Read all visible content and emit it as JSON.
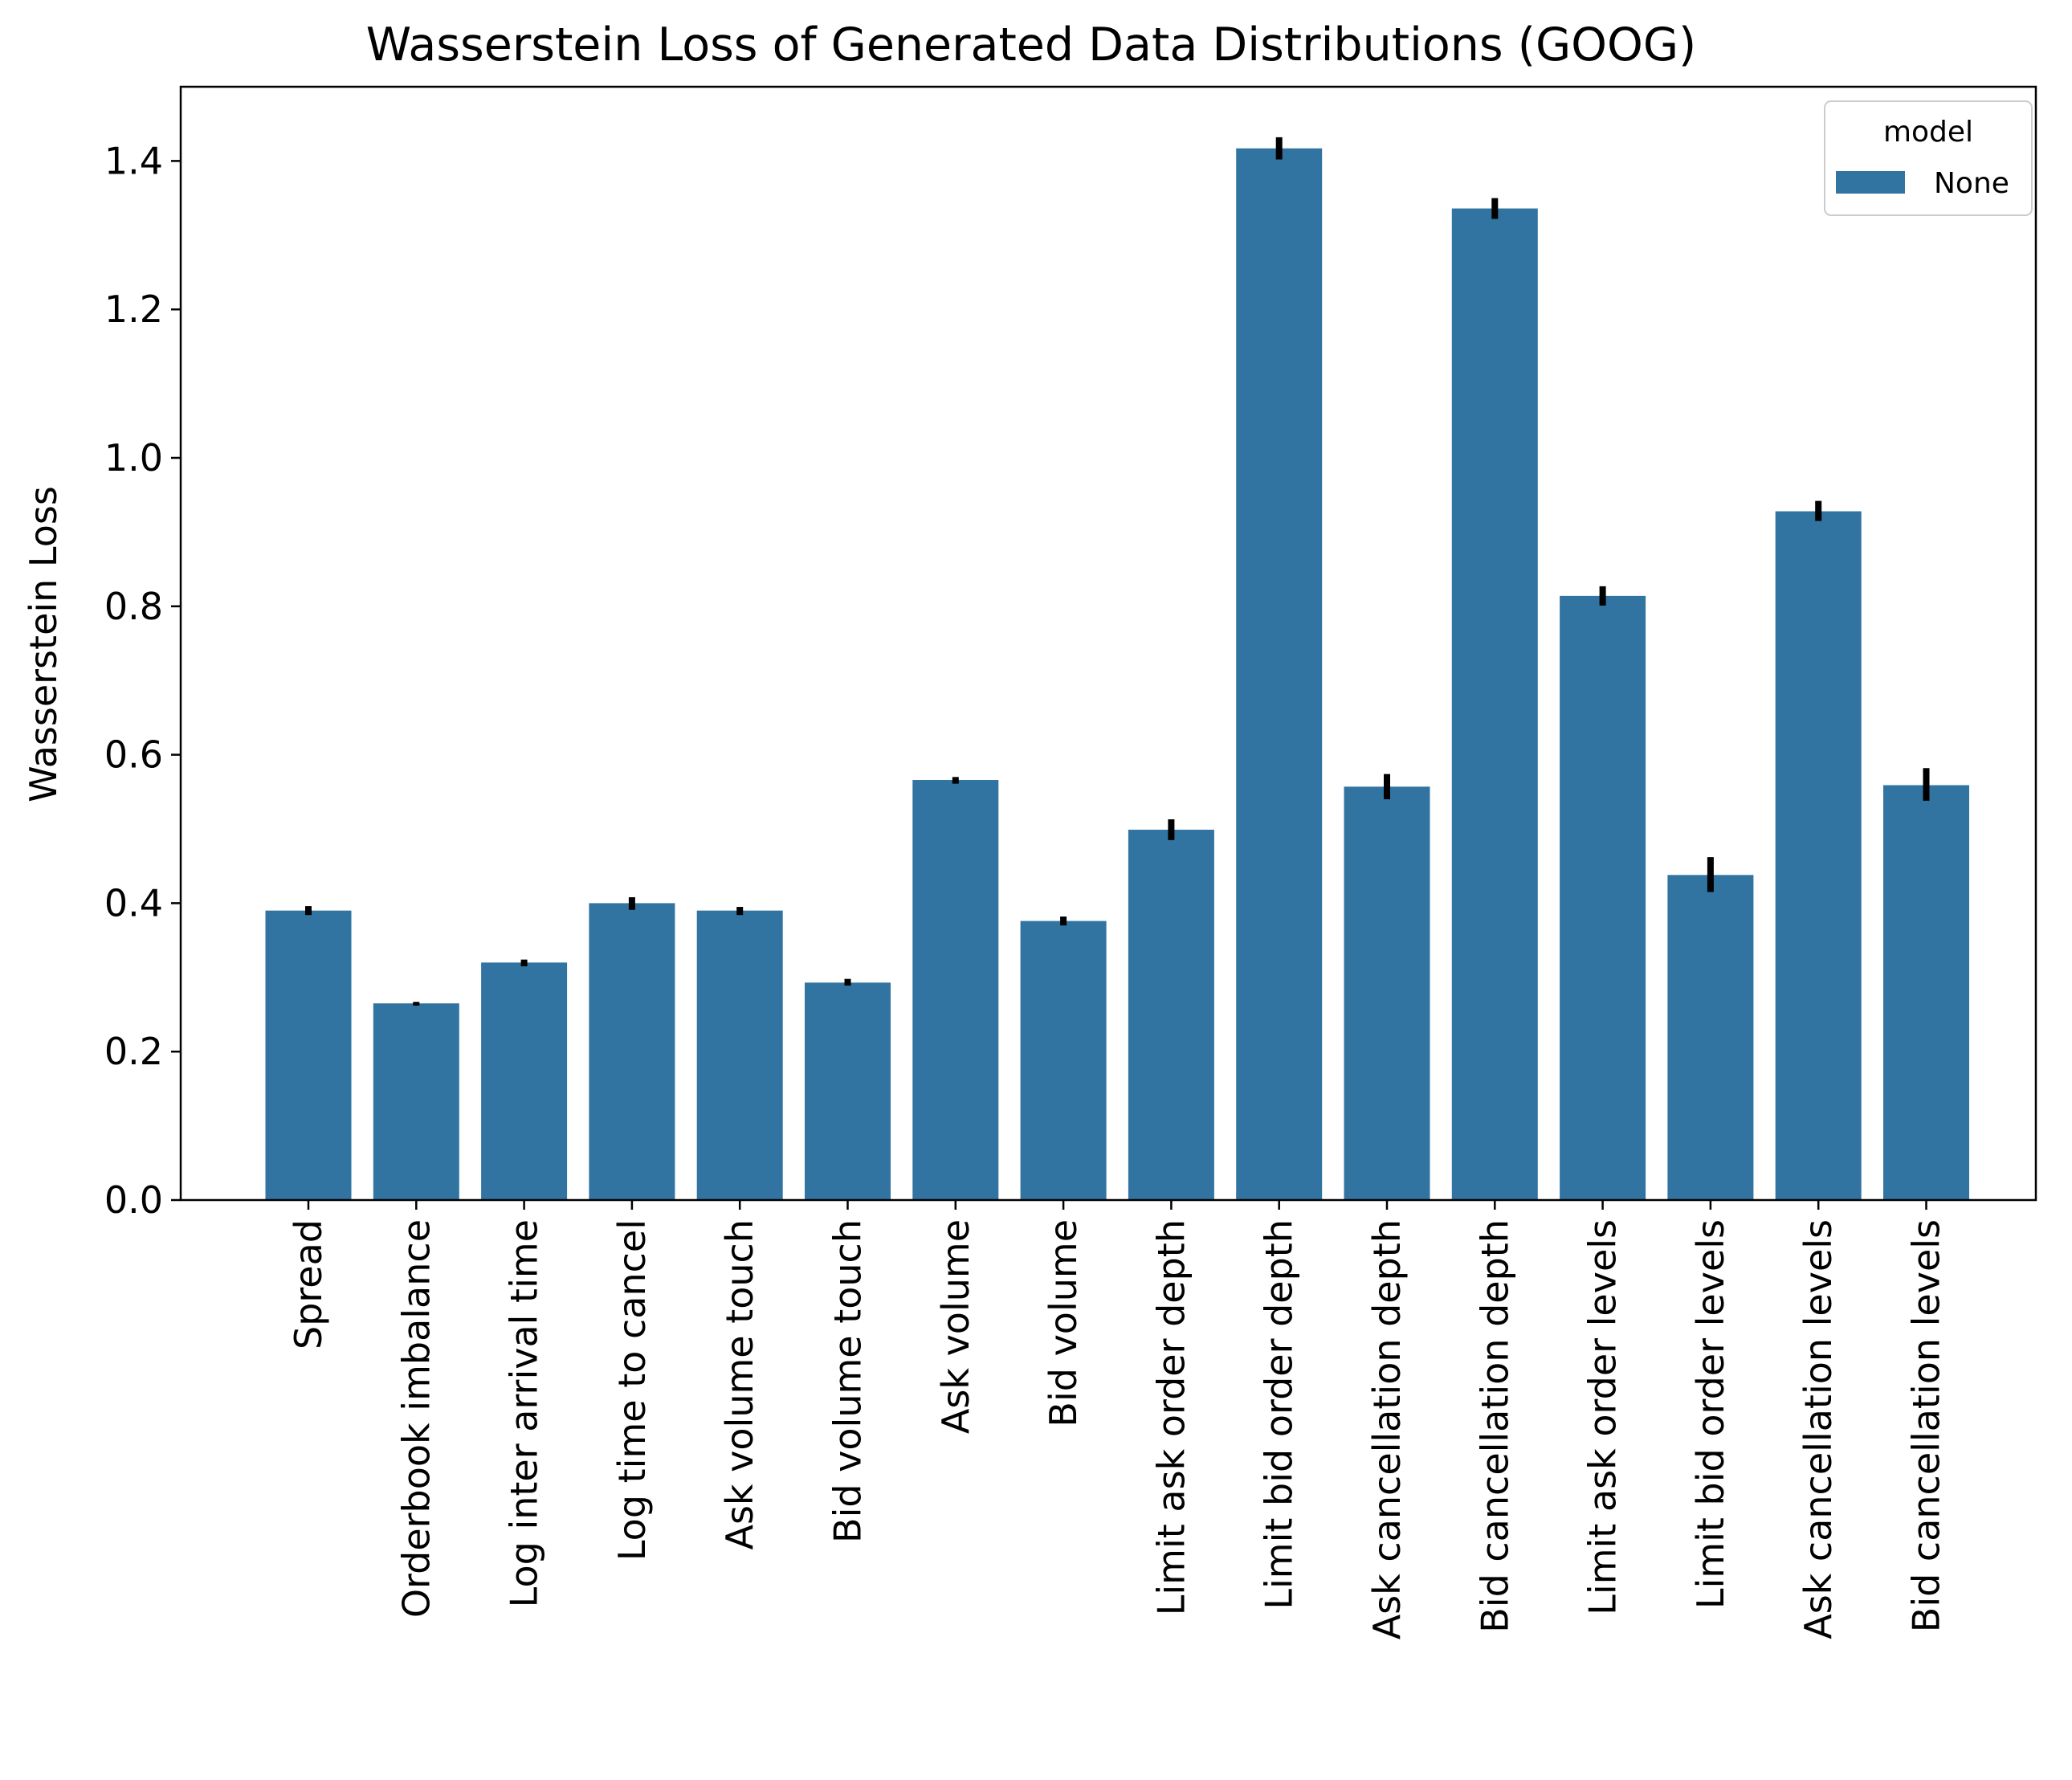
{
  "chart_data": {
    "type": "bar",
    "title": "Wasserstein Loss of Generated Data Distributions (GOOG)",
    "xlabel": "",
    "ylabel": "Wasserstein Loss",
    "ylim": [
      0,
      1.5
    ],
    "yticks": [
      "0.0",
      "0.2",
      "0.4",
      "0.6",
      "0.8",
      "1.0",
      "1.2",
      "1.4"
    ],
    "yticks_values": [
      0,
      0.2,
      0.4,
      0.6,
      0.8,
      1.0,
      1.2,
      1.4
    ],
    "grid": false,
    "bar_color": "#3274a1",
    "error_color": "#000000",
    "categories": [
      "Spread",
      "Orderbook imbalance",
      "Log inter arrival time",
      "Log time to cancel",
      "Ask volume touch",
      "Bid volume touch",
      "Ask volume",
      "Bid volume",
      "Limit ask order depth",
      "Limit bid order depth",
      "Ask cancellation depth",
      "Bid cancellation depth",
      "Limit ask order levels",
      "Limit bid order levels",
      "Ask cancellation levels",
      "Bid cancellation levels"
    ],
    "values": [
      0.39,
      0.265,
      0.32,
      0.4,
      0.39,
      0.293,
      0.566,
      0.376,
      0.499,
      1.417,
      0.557,
      1.336,
      0.814,
      0.438,
      0.928,
      0.559
    ],
    "error_low": [
      0.384,
      0.262,
      0.315,
      0.391,
      0.384,
      0.289,
      0.561,
      0.37,
      0.485,
      1.402,
      0.54,
      1.322,
      0.801,
      0.415,
      0.915,
      0.538
    ],
    "error_high": [
      0.396,
      0.267,
      0.324,
      0.408,
      0.395,
      0.298,
      0.57,
      0.382,
      0.513,
      1.432,
      0.574,
      1.35,
      0.827,
      0.462,
      0.942,
      0.582
    ],
    "legend": {
      "title": "model",
      "placement": "top-right",
      "entries": [
        {
          "label": "None",
          "color": "#3274a1"
        }
      ]
    }
  }
}
